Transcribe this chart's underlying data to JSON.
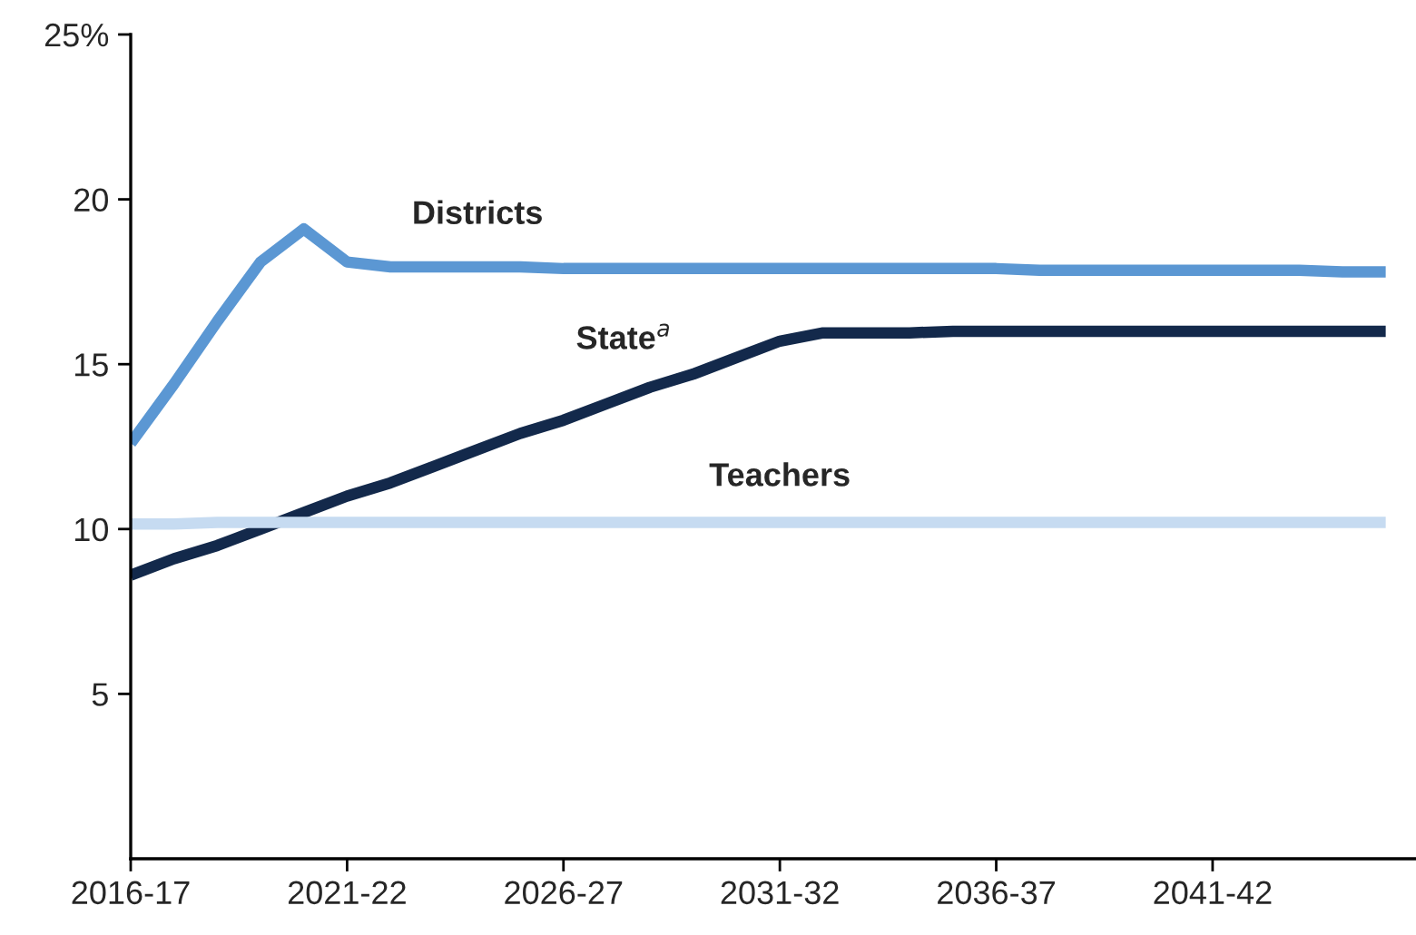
{
  "chart_data": {
    "type": "line",
    "categories": [
      "2016-17",
      null,
      null,
      null,
      null,
      "2021-22",
      null,
      null,
      null,
      null,
      "2026-27",
      null,
      null,
      null,
      null,
      "2031-32",
      null,
      null,
      null,
      null,
      "2036-37",
      null,
      null,
      null,
      null,
      "2041-42",
      null,
      null,
      null,
      null
    ],
    "ylim": [
      0,
      25
    ],
    "yticks": [
      5,
      10,
      15,
      20,
      {
        "value": 25,
        "label": "25%"
      }
    ],
    "grid": false,
    "legend": false,
    "series": [
      {
        "name": "Districts",
        "color": "#5b97d3",
        "values": [
          12.6,
          14.4,
          16.3,
          18.1,
          19.1,
          18.1,
          17.95,
          17.95,
          17.95,
          17.95,
          17.9,
          17.9,
          17.9,
          17.9,
          17.9,
          17.9,
          17.9,
          17.9,
          17.9,
          17.9,
          17.9,
          17.85,
          17.85,
          17.85,
          17.85,
          17.85,
          17.85,
          17.85,
          17.8,
          17.8
        ]
      },
      {
        "name": "State$^{a}$",
        "color": "#13294b",
        "values": [
          8.6,
          9.1,
          9.5,
          10.0,
          10.5,
          11.0,
          11.4,
          11.9,
          12.4,
          12.9,
          13.3,
          13.8,
          14.3,
          14.7,
          15.2,
          15.7,
          15.95,
          15.95,
          15.95,
          16.0,
          16.0,
          16.0,
          16.0,
          16.0,
          16.0,
          16.0,
          16.0,
          16.0,
          16.0,
          16.0
        ]
      },
      {
        "name": "Teachers",
        "color": "#c6dbf1",
        "values": [
          10.15,
          10.15,
          10.2,
          10.2,
          10.2,
          10.2,
          10.2,
          10.2,
          10.2,
          10.2,
          10.2,
          10.2,
          10.2,
          10.2,
          10.2,
          10.2,
          10.2,
          10.2,
          10.2,
          10.2,
          10.2,
          10.2,
          10.2,
          10.2,
          10.2,
          10.2,
          10.2,
          10.2,
          10.2,
          10.2
        ]
      }
    ]
  }
}
